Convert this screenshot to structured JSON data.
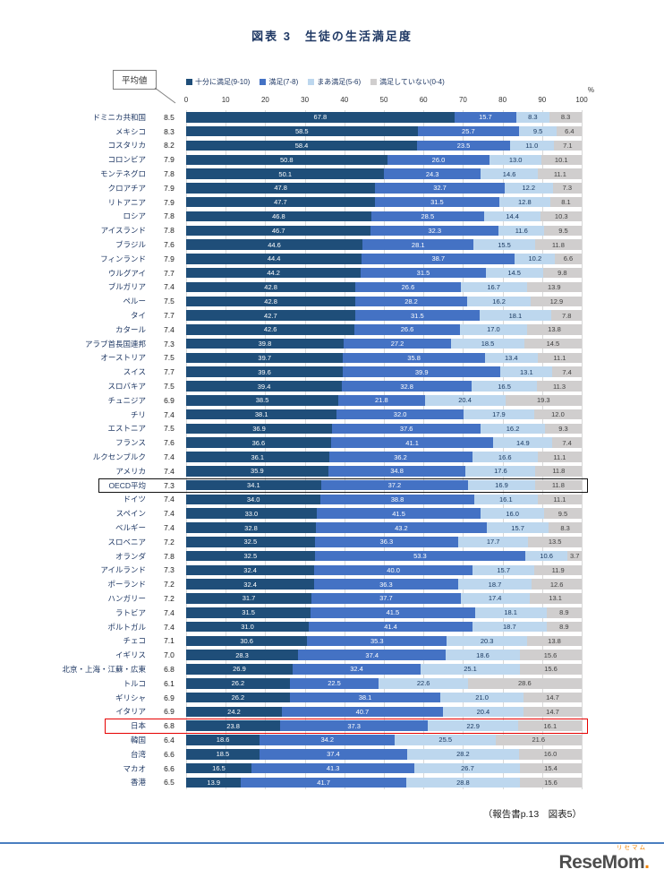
{
  "title": "図表 3　生徒の生活満足度",
  "annotation": {
    "label": "平均値"
  },
  "source_note": "（報告書p.13　図表5）",
  "footer": {
    "logo_text": "ReseMom",
    "logo_dot": ".",
    "logo_ruby": "リセマム"
  },
  "chart_data": {
    "type": "bar",
    "stacked": true,
    "orientation": "horizontal",
    "title": "図表 3　生徒の生活満足度",
    "xlabel": "",
    "unit": "%",
    "xlim": [
      0,
      100
    ],
    "x_ticks": [
      0,
      10,
      20,
      30,
      40,
      50,
      60,
      70,
      80,
      90,
      100
    ],
    "legend_position": "top",
    "grid": true,
    "series": [
      {
        "name": "十分に満足(9-10)",
        "color": "#1f4e79",
        "label_color": "#ffffff"
      },
      {
        "name": "満足(7-8)",
        "color": "#4472c4",
        "label_color": "#ffffff"
      },
      {
        "name": "まあ満足(5-6)",
        "color": "#bdd7ee",
        "label_color": "#17365d"
      },
      {
        "name": "満足していない(0-4)",
        "color": "#d0cece",
        "label_color": "#404040"
      }
    ],
    "rows": [
      {
        "country": "ドミニカ共和国",
        "avg": 8.5,
        "values": [
          67.8,
          15.7,
          8.3,
          8.3
        ]
      },
      {
        "country": "メキシコ",
        "avg": 8.3,
        "values": [
          58.5,
          25.7,
          9.5,
          6.4
        ]
      },
      {
        "country": "コスタリカ",
        "avg": 8.2,
        "values": [
          58.4,
          23.5,
          11.0,
          7.1
        ]
      },
      {
        "country": "コロンビア",
        "avg": 7.9,
        "values": [
          50.8,
          26.0,
          13.0,
          10.1
        ]
      },
      {
        "country": "モンテネグロ",
        "avg": 7.8,
        "values": [
          50.1,
          24.3,
          14.6,
          11.1
        ]
      },
      {
        "country": "クロアチア",
        "avg": 7.9,
        "values": [
          47.8,
          32.7,
          12.2,
          7.3
        ]
      },
      {
        "country": "リトアニア",
        "avg": 7.9,
        "values": [
          47.7,
          31.5,
          12.8,
          8.1
        ]
      },
      {
        "country": "ロシア",
        "avg": 7.8,
        "values": [
          46.8,
          28.5,
          14.4,
          10.3
        ]
      },
      {
        "country": "アイスランド",
        "avg": 7.8,
        "values": [
          46.7,
          32.3,
          11.6,
          9.5
        ]
      },
      {
        "country": "ブラジル",
        "avg": 7.6,
        "values": [
          44.6,
          28.1,
          15.5,
          11.8
        ]
      },
      {
        "country": "フィンランド",
        "avg": 7.9,
        "values": [
          44.4,
          38.7,
          10.2,
          6.6
        ]
      },
      {
        "country": "ウルグアイ",
        "avg": 7.7,
        "values": [
          44.2,
          31.5,
          14.5,
          9.8
        ]
      },
      {
        "country": "ブルガリア",
        "avg": 7.4,
        "values": [
          42.8,
          26.6,
          16.7,
          13.9
        ]
      },
      {
        "country": "ペルー",
        "avg": 7.5,
        "values": [
          42.8,
          28.2,
          16.2,
          12.9
        ]
      },
      {
        "country": "タイ",
        "avg": 7.7,
        "values": [
          42.7,
          31.5,
          18.1,
          7.8
        ]
      },
      {
        "country": "カタール",
        "avg": 7.4,
        "values": [
          42.6,
          26.6,
          17.0,
          13.8
        ]
      },
      {
        "country": "アラブ首長国連邦",
        "avg": 7.3,
        "values": [
          39.8,
          27.2,
          18.5,
          14.5
        ]
      },
      {
        "country": "オーストリア",
        "avg": 7.5,
        "values": [
          39.7,
          35.8,
          13.4,
          11.1
        ]
      },
      {
        "country": "スイス",
        "avg": 7.7,
        "values": [
          39.6,
          39.9,
          13.1,
          7.4
        ]
      },
      {
        "country": "スロバキア",
        "avg": 7.5,
        "values": [
          39.4,
          32.8,
          16.5,
          11.3
        ]
      },
      {
        "country": "チュニジア",
        "avg": 6.9,
        "values": [
          38.5,
          21.8,
          20.4,
          19.3
        ]
      },
      {
        "country": "チリ",
        "avg": 7.4,
        "values": [
          38.1,
          32.0,
          17.9,
          12.0
        ]
      },
      {
        "country": "エストニア",
        "avg": 7.5,
        "values": [
          36.9,
          37.6,
          16.2,
          9.3
        ]
      },
      {
        "country": "フランス",
        "avg": 7.6,
        "values": [
          36.6,
          41.1,
          14.9,
          7.4
        ]
      },
      {
        "country": "ルクセンブルク",
        "avg": 7.4,
        "values": [
          36.1,
          36.2,
          16.6,
          11.1
        ]
      },
      {
        "country": "アメリカ",
        "avg": 7.4,
        "values": [
          35.9,
          34.8,
          17.6,
          11.8
        ]
      },
      {
        "country": "OECD平均",
        "avg": 7.3,
        "values": [
          34.1,
          37.2,
          16.9,
          11.8
        ],
        "highlight": "black"
      },
      {
        "country": "ドイツ",
        "avg": 7.4,
        "values": [
          34.0,
          38.8,
          16.1,
          11.1
        ]
      },
      {
        "country": "スペイン",
        "avg": 7.4,
        "values": [
          33.0,
          41.5,
          16.0,
          9.5
        ]
      },
      {
        "country": "ベルギー",
        "avg": 7.4,
        "values": [
          32.8,
          43.2,
          15.7,
          8.3
        ]
      },
      {
        "country": "スロベニア",
        "avg": 7.2,
        "values": [
          32.5,
          36.3,
          17.7,
          13.5
        ]
      },
      {
        "country": "オランダ",
        "avg": 7.8,
        "values": [
          32.5,
          53.3,
          10.6,
          3.7
        ]
      },
      {
        "country": "アイルランド",
        "avg": 7.3,
        "values": [
          32.4,
          40.0,
          15.7,
          11.9
        ]
      },
      {
        "country": "ポーランド",
        "avg": 7.2,
        "values": [
          32.4,
          36.3,
          18.7,
          12.6
        ]
      },
      {
        "country": "ハンガリー",
        "avg": 7.2,
        "values": [
          31.7,
          37.7,
          17.4,
          13.1
        ]
      },
      {
        "country": "ラトビア",
        "avg": 7.4,
        "values": [
          31.5,
          41.5,
          18.1,
          8.9
        ]
      },
      {
        "country": "ポルトガル",
        "avg": 7.4,
        "values": [
          31.0,
          41.4,
          18.7,
          8.9
        ]
      },
      {
        "country": "チェコ",
        "avg": 7.1,
        "values": [
          30.6,
          35.3,
          20.3,
          13.8
        ]
      },
      {
        "country": "イギリス",
        "avg": 7.0,
        "values": [
          28.3,
          37.4,
          18.6,
          15.6
        ]
      },
      {
        "country": "北京・上海・江蘇・広東",
        "avg": 6.8,
        "values": [
          26.9,
          32.4,
          25.1,
          15.6
        ]
      },
      {
        "country": "トルコ",
        "avg": 6.1,
        "values": [
          26.2,
          22.5,
          22.6,
          28.6
        ]
      },
      {
        "country": "ギリシャ",
        "avg": 6.9,
        "values": [
          26.2,
          38.1,
          21.0,
          14.7
        ]
      },
      {
        "country": "イタリア",
        "avg": 6.9,
        "values": [
          24.2,
          40.7,
          20.4,
          14.7
        ]
      },
      {
        "country": "日本",
        "avg": 6.8,
        "values": [
          23.8,
          37.3,
          22.9,
          16.1
        ],
        "highlight": "red"
      },
      {
        "country": "韓国",
        "avg": 6.4,
        "values": [
          18.6,
          34.2,
          25.5,
          21.6
        ]
      },
      {
        "country": "台湾",
        "avg": 6.6,
        "values": [
          18.5,
          37.4,
          28.2,
          16.0
        ]
      },
      {
        "country": "マカオ",
        "avg": 6.6,
        "values": [
          16.5,
          41.3,
          26.7,
          15.4
        ]
      },
      {
        "country": "香港",
        "avg": 6.5,
        "values": [
          13.9,
          41.7,
          28.8,
          15.6
        ]
      }
    ]
  }
}
